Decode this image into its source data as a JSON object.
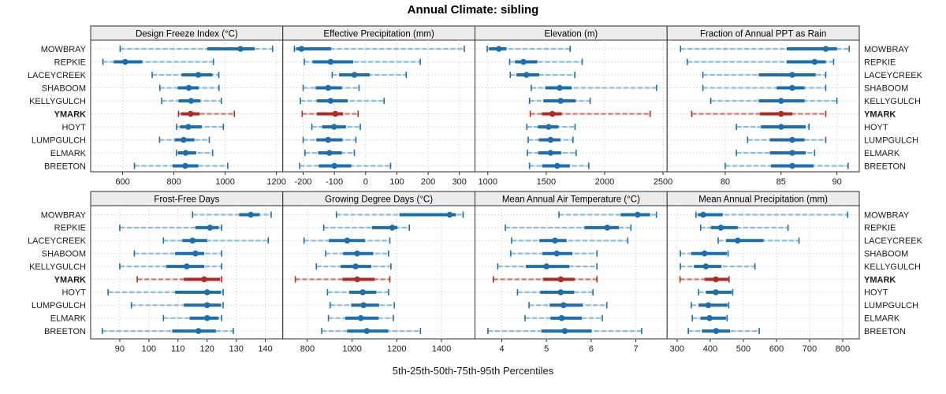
{
  "chart_data": {
    "type": "interval-dotplot",
    "title": "Annual Climate: sibling",
    "caption": "5th-25th-50th-75th-95th Percentiles",
    "percentiles": [
      5,
      25,
      50,
      75,
      95
    ],
    "layout_hint": {
      "rows": 2,
      "cols": 4,
      "grid": "dotted",
      "y_labels": "both-sides"
    },
    "categories": [
      "MOWBRAY",
      "REPKIE",
      "LACEYCREEK",
      "SHABOOM",
      "KELLYGULCH",
      "YMARK",
      "HOYT",
      "LUMPGULCH",
      "ELMARK",
      "BREETON"
    ],
    "highlight_category": "YMARK",
    "colors": {
      "series_dark": "#1c6fae",
      "series_light_dash": "#8ebcdc",
      "series_light_base": "#d7e7f3",
      "highlight_dark": "#b22a22",
      "highlight_light_dash": "#d1796e",
      "highlight_light_base": "#f2d8d3",
      "strip_bg": "#ececec",
      "panel_border": "#2e2e2e",
      "gridline": "#cfcfcf",
      "text": "#1a1a1a"
    },
    "panels": [
      {
        "label": "Design Freeze Index (°C)",
        "ticks": [
          600,
          800,
          1000,
          1200
        ],
        "extra_gridlines": [],
        "xlim": [
          475,
          1225
        ],
        "series": [
          [
            590,
            930,
            1060,
            1115,
            1185
          ],
          [
            523,
            565,
            610,
            677,
            954
          ],
          [
            715,
            830,
            895,
            950,
            975
          ],
          [
            745,
            815,
            858,
            897,
            976
          ],
          [
            752,
            818,
            867,
            903,
            985
          ],
          [
            818,
            828,
            865,
            900,
            1036
          ],
          [
            810,
            824,
            856,
            908,
            993
          ],
          [
            744,
            803,
            838,
            880,
            938
          ],
          [
            810,
            816,
            846,
            887,
            951
          ],
          [
            646,
            795,
            844,
            895,
            1010
          ]
        ]
      },
      {
        "label": "Effective Precipitation (mm)",
        "ticks": [
          -200,
          -100,
          0,
          100,
          200,
          300
        ],
        "extra_gridlines": [],
        "xlim": [
          -265,
          350
        ],
        "series": [
          [
            -228,
            -222,
            -205,
            -110,
            316
          ],
          [
            -196,
            -170,
            -112,
            -40,
            175
          ],
          [
            -107,
            -85,
            -36,
            13,
            130
          ],
          [
            -200,
            -160,
            -120,
            -76,
            -21
          ],
          [
            -209,
            -156,
            -112,
            -57,
            59
          ],
          [
            -203,
            -156,
            -97,
            -72,
            -24
          ],
          [
            -172,
            -139,
            -101,
            -63,
            -17
          ],
          [
            -200,
            -158,
            -120,
            -74,
            -31
          ],
          [
            -194,
            -152,
            -116,
            -76,
            -36
          ],
          [
            -211,
            -150,
            -100,
            -46,
            80
          ]
        ]
      },
      {
        "label": "Elevation (m)",
        "ticks": [
          1000,
          1500,
          2000,
          2500
        ],
        "extra_gridlines": [],
        "xlim": [
          890,
          2535
        ],
        "series": [
          [
            995,
            1010,
            1095,
            1160,
            1705
          ],
          [
            1187,
            1232,
            1305,
            1424,
            1808
          ],
          [
            1192,
            1245,
            1330,
            1440,
            1745
          ],
          [
            1372,
            1492,
            1615,
            1718,
            2445
          ],
          [
            1357,
            1476,
            1623,
            1752,
            1876
          ],
          [
            1363,
            1463,
            1553,
            1632,
            2390
          ],
          [
            1334,
            1429,
            1521,
            1605,
            1747
          ],
          [
            1345,
            1436,
            1537,
            1621,
            1729
          ],
          [
            1339,
            1431,
            1537,
            1628,
            1756
          ],
          [
            1357,
            1465,
            1594,
            1702,
            1864
          ]
        ]
      },
      {
        "label": "Fraction of Annual PPT as Rain",
        "ticks": [
          80,
          85,
          90
        ],
        "extra_gridlines": [
          75
        ],
        "xlim": [
          74.8,
          92
        ],
        "series": [
          [
            76.0,
            85.5,
            89.0,
            90.0,
            91.1
          ],
          [
            76.6,
            85.5,
            88.0,
            89.0,
            89.7
          ],
          [
            78.0,
            83.0,
            86.0,
            88.1,
            89.0
          ],
          [
            78.0,
            84.6,
            86.0,
            87.1,
            89.0
          ],
          [
            78.7,
            83.0,
            85.0,
            87.1,
            90.0
          ],
          [
            77.0,
            83.1,
            85.0,
            86.0,
            89.0
          ],
          [
            81.0,
            83.2,
            85.0,
            87.2,
            87.5
          ],
          [
            82.0,
            84.0,
            86.0,
            87.1,
            89.0
          ],
          [
            81.0,
            84.0,
            86.0,
            87.2,
            88.0
          ],
          [
            80.0,
            84.1,
            86.0,
            87.9,
            91.0
          ]
        ]
      },
      {
        "label": "Frost-Free Days",
        "ticks": [
          90,
          100,
          110,
          120,
          130,
          140
        ],
        "extra_gridlines": [],
        "xlim": [
          80,
          146
        ],
        "series": [
          [
            115,
            131,
            135,
            138,
            142
          ],
          [
            90,
            116,
            121,
            124,
            125
          ],
          [
            105,
            111.5,
            115,
            120,
            141
          ],
          [
            95,
            109,
            116,
            119,
            125
          ],
          [
            90,
            106,
            113,
            119,
            125
          ],
          [
            96,
            112,
            119,
            124.5,
            125
          ],
          [
            86,
            109,
            120,
            124.8,
            125.5
          ],
          [
            94,
            112,
            120,
            124.8,
            125.5
          ],
          [
            105,
            114,
            120,
            124,
            125
          ],
          [
            84,
            108,
            117,
            123,
            129
          ]
        ]
      },
      {
        "label": "Growing Degree Days (°C)",
        "ticks": [
          800,
          1000,
          1200,
          1400
        ],
        "extra_gridlines": [],
        "xlim": [
          690,
          1550
        ],
        "series": [
          [
            930,
            1212,
            1437,
            1465,
            1497
          ],
          [
            873,
            1089,
            1180,
            1203,
            1256
          ],
          [
            785,
            896,
            978,
            1058,
            1169
          ],
          [
            882,
            960,
            1023,
            1095,
            1163
          ],
          [
            840,
            949,
            1016,
            1086,
            1174
          ],
          [
            746,
            957,
            1023,
            1101,
            1169
          ],
          [
            890,
            987,
            1048,
            1109,
            1163
          ],
          [
            902,
            996,
            1051,
            1121,
            1189
          ],
          [
            894,
            969,
            1039,
            1119,
            1185
          ],
          [
            864,
            978,
            1066,
            1162,
            1306
          ]
        ]
      },
      {
        "label": "Mean Annual Air Temperature (°C)",
        "ticks": [
          4,
          5,
          6,
          7
        ],
        "extra_gridlines": [],
        "xlim": [
          3.4,
          7.7
        ],
        "series": [
          [
            5.28,
            6.66,
            7.04,
            7.32,
            7.46
          ],
          [
            4.08,
            5.85,
            6.36,
            6.62,
            6.89
          ],
          [
            4.22,
            4.84,
            5.19,
            5.45,
            6.82
          ],
          [
            4.2,
            4.91,
            5.23,
            5.58,
            6.13
          ],
          [
            3.91,
            4.54,
            5.0,
            5.51,
            6.13
          ],
          [
            3.81,
            4.92,
            5.32,
            5.63,
            6.13
          ],
          [
            4.35,
            4.86,
            5.32,
            5.62,
            6.04
          ],
          [
            4.61,
            5.07,
            5.38,
            5.81,
            6.35
          ],
          [
            4.52,
            5.09,
            5.34,
            5.79,
            6.25
          ],
          [
            3.69,
            4.89,
            5.41,
            6.01,
            7.13
          ]
        ]
      },
      {
        "label": "Mean Annual Precipitation (mm)",
        "ticks": [
          300,
          400,
          500,
          600,
          700,
          800
        ],
        "extra_gridlines": [],
        "xlim": [
          270,
          850
        ],
        "series": [
          [
            357,
            363,
            379,
            438,
            815
          ],
          [
            371,
            402,
            432,
            483,
            635
          ],
          [
            424,
            448,
            483,
            561,
            668
          ],
          [
            310,
            343,
            383,
            450,
            454
          ],
          [
            310,
            351,
            387,
            434,
            535
          ],
          [
            309,
            383,
            417,
            455,
            457
          ],
          [
            365,
            387,
            417,
            465,
            468
          ],
          [
            343,
            365,
            394,
            452,
            456
          ],
          [
            346,
            371,
            398,
            448,
            451
          ],
          [
            334,
            375,
            418,
            460,
            548
          ]
        ]
      }
    ]
  }
}
